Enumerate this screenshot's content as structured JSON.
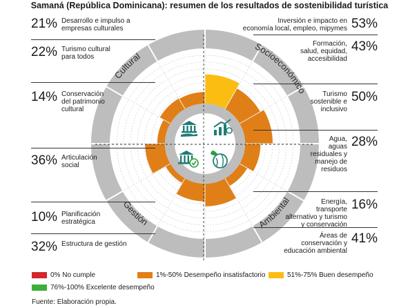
{
  "title": "Samaná (República Dominicana): resumen de los resultados de sostenibilidad turística",
  "colors": {
    "no_cumple": "#d3272a",
    "insatisfactorio": "#e07f17",
    "buen": "#fbbd12",
    "excelente": "#3fae3b",
    "ring": "#bdbdbd"
  },
  "icons": [
    "bank-hand-icon",
    "money-growth-icon",
    "bank-check-icon",
    "leaf-globe-icon"
  ],
  "chart_data": {
    "type": "polar-bar",
    "quadrants": [
      "Cultural",
      "Socioeconómico",
      "Ambiental",
      "Gestión"
    ],
    "left_items": [
      {
        "pct": "21%",
        "label": [
          "Desarrollo e impulso a",
          "empresas culturales"
        ]
      },
      {
        "pct": "22%",
        "label": [
          "Turismo cultural",
          "para todos"
        ]
      },
      {
        "pct": "14%",
        "label": [
          "Conservación",
          "del patrimonio",
          "cultural"
        ]
      },
      {
        "pct": "36%",
        "label": [
          "Articulación",
          "social"
        ]
      },
      {
        "pct": "10%",
        "label": [
          "Planificación",
          "estratégica"
        ]
      },
      {
        "pct": "32%",
        "label": [
          "Estructura de gestión"
        ]
      }
    ],
    "right_items": [
      {
        "pct": "53%",
        "label": [
          "Inversión e impacto en",
          "economía local, empleo, mipymes"
        ]
      },
      {
        "pct": "43%",
        "label": [
          "Formación,",
          "salud, equidad,",
          "accesibilidad"
        ]
      },
      {
        "pct": "50%",
        "label": [
          "Turismo",
          "sostenible e",
          "inclusivo"
        ]
      },
      {
        "pct": "28%",
        "label": [
          "Agua,",
          "aguas",
          "residuales y",
          "manejo de",
          "residuos"
        ]
      },
      {
        "pct": "16%",
        "label": [
          "Energía,",
          "transporte",
          "alternativo y turismo",
          "y conservación"
        ]
      },
      {
        "pct": "41%",
        "label": [
          "Áreas de",
          "conservación y",
          "educación ambiental"
        ]
      }
    ],
    "bars_clockwise_from_top": [
      {
        "name": "Inversión e impacto en economía local, empleo, mipymes",
        "value": 53,
        "category": "buen"
      },
      {
        "name": "Formación, salud, equidad, accesibilidad",
        "value": 43,
        "category": "insatisfactorio"
      },
      {
        "name": "Turismo sostenible e inclusivo",
        "value": 50,
        "category": "insatisfactorio"
      },
      {
        "name": "Agua, aguas residuales y manejo de residuos",
        "value": 28,
        "category": "insatisfactorio"
      },
      {
        "name": "Energía, transporte alternativo y turismo y conservación",
        "value": 16,
        "category": "insatisfactorio"
      },
      {
        "name": "Áreas de conservación y educación ambiental",
        "value": 41,
        "category": "insatisfactorio"
      },
      {
        "name": "Estructura de gestión",
        "value": 32,
        "category": "insatisfactorio"
      },
      {
        "name": "Planificación estratégica",
        "value": 10,
        "category": "insatisfactorio"
      },
      {
        "name": "Articulación social",
        "value": 36,
        "category": "insatisfactorio"
      },
      {
        "name": "Conservación del patrimonio cultural",
        "value": 14,
        "category": "insatisfactorio"
      },
      {
        "name": "Turismo cultural para todos",
        "value": 22,
        "category": "insatisfactorio"
      },
      {
        "name": "Desarrollo e impulso a empresas culturales",
        "value": 21,
        "category": "insatisfactorio"
      }
    ],
    "legend": [
      {
        "key": "no_cumple",
        "label": "0% No cumple"
      },
      {
        "key": "insatisfactorio",
        "label": "1%-50% Desempeño insatisfactorio"
      },
      {
        "key": "buen",
        "label": "51%-75% Buen desempeño"
      },
      {
        "key": "excelente",
        "label": "76%-100% Excelente desempeño"
      }
    ]
  },
  "source": "Fuente: Elaboración propia."
}
